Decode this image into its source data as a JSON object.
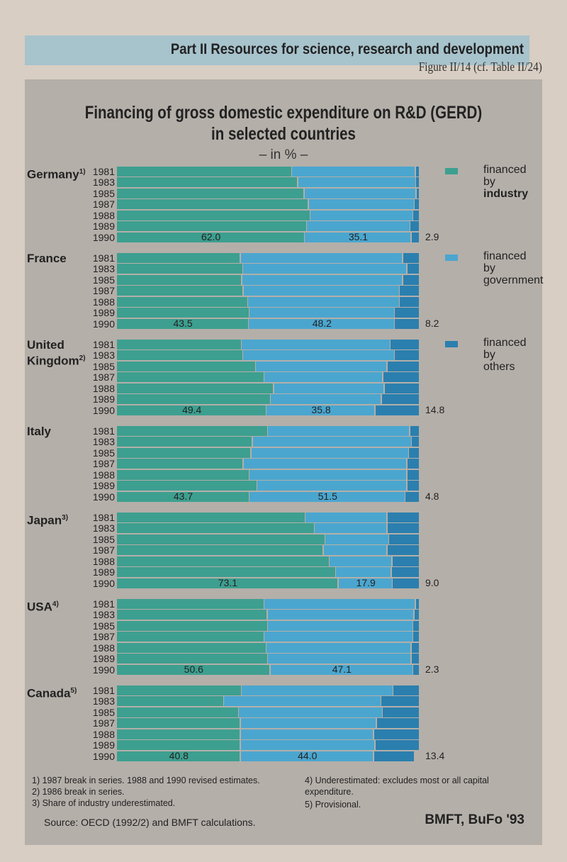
{
  "header": {
    "part": "Part II   Resources for science, research and development",
    "figure": "Figure II/14 (cf. Table II/24)"
  },
  "chart_data": {
    "type": "bar",
    "orientation": "horizontal-stacked-100",
    "title": "Financing of gross domestic expenditure on R&D (GERD)",
    "title2": "in selected countries",
    "subtitle": "– in % –",
    "colors": {
      "industry": "#3d9f8f",
      "government": "#4ba6cf",
      "others": "#2b7fae"
    },
    "legend": [
      {
        "key": "industry",
        "l1": "financed",
        "l2": "by",
        "l3": "industry"
      },
      {
        "key": "government",
        "l1": "financed",
        "l2": "by",
        "l3": "government"
      },
      {
        "key": "others",
        "l1": "financed",
        "l2": "by",
        "l3": "others"
      }
    ],
    "years": [
      "1981",
      "1983",
      "1985",
      "1987",
      "1988",
      "1989",
      "1990"
    ],
    "countries": [
      {
        "name": "Germany",
        "note": "1)",
        "industry": [
          57.8,
          59.8,
          61.8,
          63.3,
          63.8,
          62.7,
          62.0
        ],
        "government": [
          40.8,
          38.9,
          37.0,
          34.9,
          33.9,
          34.1,
          35.1
        ],
        "others": [
          1.4,
          1.3,
          1.2,
          1.8,
          2.3,
          3.2,
          2.9
        ],
        "labels": [
          "62.0",
          "35.1",
          "2.9"
        ]
      },
      {
        "name": "France",
        "note": "",
        "industry": [
          40.8,
          41.7,
          41.3,
          41.8,
          43.3,
          43.8,
          43.5
        ],
        "government": [
          53.5,
          54.0,
          53.0,
          51.5,
          50.0,
          47.9,
          48.2
        ],
        "others": [
          5.7,
          4.3,
          5.7,
          6.7,
          6.7,
          8.3,
          8.2
        ],
        "labels": [
          "43.5",
          "48.2",
          "8.2"
        ]
      },
      {
        "name": "United Kingdom",
        "note": "2)",
        "industry": [
          41.2,
          41.7,
          45.8,
          48.7,
          51.8,
          50.8,
          49.4
        ],
        "government": [
          49.1,
          50.0,
          43.4,
          39.1,
          36.5,
          36.5,
          35.8
        ],
        "others": [
          9.7,
          8.3,
          10.8,
          12.2,
          11.7,
          12.7,
          14.8
        ],
        "labels": [
          "49.4",
          "35.8",
          "14.8"
        ]
      },
      {
        "name": "Italy",
        "note": "",
        "industry": [
          49.8,
          44.8,
          44.3,
          41.8,
          43.8,
          46.3,
          43.7
        ],
        "government": [
          46.9,
          52.5,
          52.0,
          53.9,
          51.9,
          49.4,
          51.5
        ],
        "others": [
          3.3,
          2.7,
          3.7,
          4.3,
          4.3,
          4.3,
          4.8
        ],
        "labels": [
          "43.7",
          "51.5",
          "4.8"
        ]
      },
      {
        "name": "Japan",
        "note": "3)",
        "industry": [
          62.2,
          65.3,
          68.7,
          68.2,
          70.2,
          72.3,
          73.1
        ],
        "government": [
          27.0,
          23.9,
          21.1,
          21.0,
          20.6,
          18.3,
          17.9
        ],
        "others": [
          10.8,
          10.8,
          10.2,
          10.8,
          9.2,
          9.4,
          9.0
        ],
        "labels": [
          "73.1",
          "17.9",
          "9.0"
        ]
      },
      {
        "name": "USA",
        "note": "4)",
        "industry": [
          48.7,
          49.7,
          49.8,
          48.7,
          49.3,
          49.8,
          50.6
        ],
        "government": [
          49.9,
          48.4,
          47.9,
          49.0,
          47.8,
          47.3,
          47.1
        ],
        "others": [
          1.4,
          1.9,
          2.3,
          2.3,
          2.9,
          2.9,
          2.3
        ],
        "labels": [
          "50.6",
          "47.1",
          "2.3"
        ]
      },
      {
        "name": "Canada",
        "note": "5)",
        "industry": [
          41.2,
          35.3,
          40.3,
          40.8,
          40.8,
          40.8,
          40.8
        ],
        "government": [
          50.0,
          51.9,
          47.4,
          44.9,
          43.9,
          44.4,
          44.0
        ],
        "others": [
          8.8,
          12.8,
          12.3,
          14.3,
          15.3,
          14.8,
          13.4
        ],
        "labels": [
          "40.8",
          "44.0",
          "13.4"
        ]
      }
    ]
  },
  "footnotes": {
    "f1": "1) 1987 break in series. 1988 and 1990 revised estimates.",
    "f2": "2) 1986 break in series.",
    "f3": "3) Share of industry underestimated.",
    "f4": "4) Underestimated: excludes most or all capital expenditure.",
    "f5": "5) Provisional."
  },
  "source": "Source: OECD (1992/2) and BMFT calculations.",
  "credit": "BMFT, BuFo '93"
}
